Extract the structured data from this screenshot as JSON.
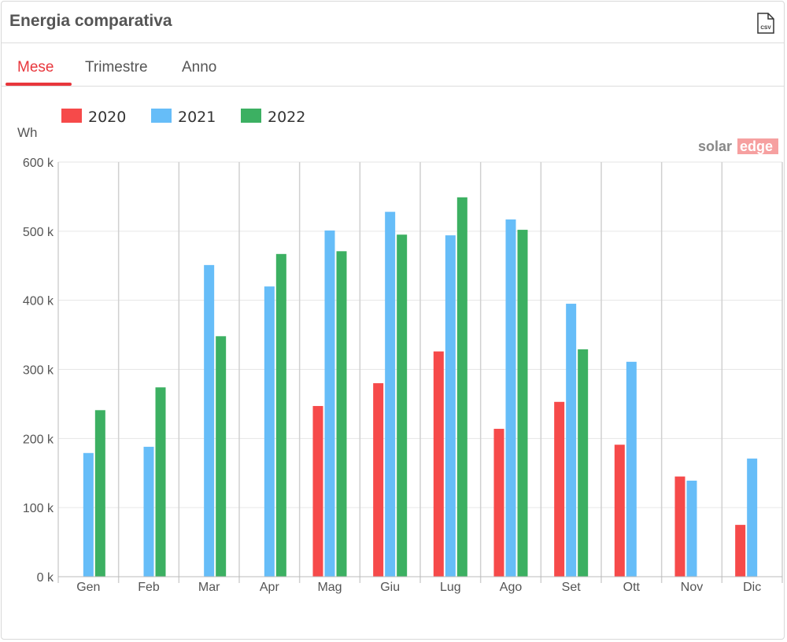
{
  "header": {
    "title": "Energia comparativa",
    "csv_icon": "csv-file-icon",
    "csv_label": "CSV"
  },
  "tabs": [
    {
      "label": "Mese",
      "active": true
    },
    {
      "label": "Trimestre",
      "active": false
    },
    {
      "label": "Anno",
      "active": false
    }
  ],
  "logo": {
    "text_solar": "solar",
    "text_edge": "edge"
  },
  "chart_data": {
    "type": "bar",
    "title": "",
    "ylabel": "Wh",
    "xlabel": "",
    "ylim": [
      0,
      600000
    ],
    "yticks": [
      0,
      100000,
      200000,
      300000,
      400000,
      500000,
      600000
    ],
    "ytick_labels": [
      "0 k",
      "100 k",
      "200 k",
      "300 k",
      "400 k",
      "500 k",
      "600 k"
    ],
    "categories": [
      "Gen",
      "Feb",
      "Mar",
      "Apr",
      "Mag",
      "Giu",
      "Lug",
      "Ago",
      "Set",
      "Ott",
      "Nov",
      "Dic"
    ],
    "legend_position": "top-left",
    "grid": true,
    "series": [
      {
        "name": "2020",
        "color": "#f64a4a",
        "values": [
          null,
          null,
          null,
          null,
          247000,
          280000,
          326000,
          214000,
          253000,
          191000,
          145000,
          75000
        ]
      },
      {
        "name": "2021",
        "color": "#66bdf8",
        "values": [
          179000,
          188000,
          451000,
          420000,
          501000,
          528000,
          494000,
          517000,
          395000,
          311000,
          139000,
          171000
        ]
      },
      {
        "name": "2022",
        "color": "#3cb062",
        "values": [
          241000,
          274000,
          348000,
          467000,
          471000,
          495000,
          549000,
          502000,
          329000,
          null,
          null,
          null
        ]
      }
    ]
  }
}
